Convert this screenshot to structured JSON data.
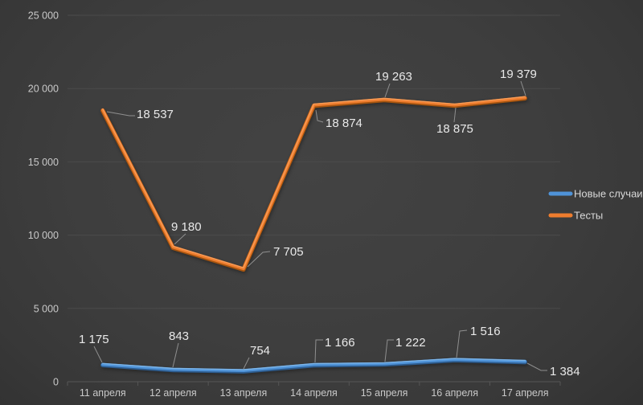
{
  "chart_data": {
    "type": "line",
    "categories": [
      "11 апреля",
      "12 апреля",
      "13 апреля",
      "14 апреля",
      "15 апреля",
      "16 апреля",
      "17 апреля"
    ],
    "series": [
      {
        "name": "Новые случаи",
        "color": "#4f93d8",
        "values": [
          1175,
          843,
          754,
          1166,
          1222,
          1516,
          1384
        ],
        "labels": [
          "1 175",
          "843",
          "754",
          "1 166",
          "1 222",
          "1 516",
          "1 384"
        ]
      },
      {
        "name": "Тесты",
        "color": "#ee7d2e",
        "values": [
          18537,
          9180,
          7705,
          18874,
          19263,
          18875,
          19379
        ],
        "labels": [
          "18 537",
          "9 180",
          "7 705",
          "18 874",
          "19 263",
          "18 875",
          "19 379"
        ]
      }
    ],
    "y_tick_values": [
      0,
      5000,
      10000,
      15000,
      20000,
      25000
    ],
    "y_tick_labels": [
      "0",
      "5 000",
      "10 000",
      "15 000",
      "20 000",
      "25 000"
    ],
    "ylim": [
      0,
      25000
    ],
    "grid": true,
    "legend_position": "right",
    "title": ""
  },
  "colors": {
    "background_center": "#3e3e3e",
    "background_edge": "#242424",
    "gridline": "#4b4b4b",
    "axis_text": "#c9c9c9",
    "data_label_text": "#e9e9e9",
    "legend_text": "#d9d9d9",
    "series_blue": "#4f93d8",
    "series_orange": "#ee7d2e"
  }
}
